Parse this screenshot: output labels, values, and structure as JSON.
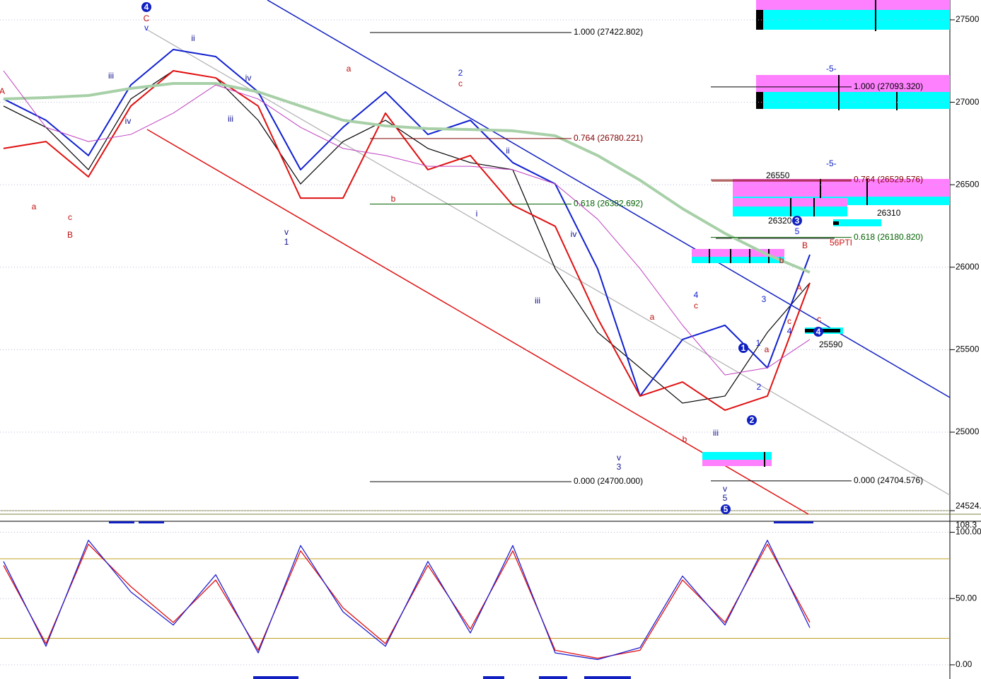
{
  "chart_data": [
    {
      "type": "line",
      "ylim": [
        24524,
        27620
      ],
      "yticks": [
        25000,
        25500,
        26000,
        26500,
        27000,
        27500,
        {
          "value": 24524,
          "label": "24524."
        }
      ],
      "series": [
        {
          "name": "close",
          "color": "#000000",
          "values": [
            26977,
            26848,
            26591,
            27020,
            27191,
            27148,
            26891,
            26505,
            26762,
            26891,
            26720,
            26634,
            26591,
            25991,
            25605,
            25390,
            25176,
            25219,
            25605,
            25905
          ]
        },
        {
          "name": "upper",
          "color": "#1020d0",
          "values": [
            27020,
            26891,
            26677,
            27105,
            27320,
            27277,
            27063,
            26591,
            26848,
            27063,
            26805,
            26891,
            26634,
            26505,
            25991,
            25219,
            25562,
            25648,
            25390,
            26076
          ]
        },
        {
          "name": "lower",
          "color": "#e01010",
          "values": [
            26720,
            26762,
            26548,
            26977,
            27191,
            27148,
            26977,
            26419,
            26419,
            26934,
            26591,
            26677,
            26376,
            26248,
            25690,
            25219,
            25304,
            25133,
            25219,
            25905
          ]
        },
        {
          "name": "slow",
          "color": "#a8d0a8",
          "values": [
            27020,
            27028,
            27041,
            27084,
            27114,
            27114,
            27063,
            26977,
            26891,
            26857,
            26840,
            26835,
            26827,
            26797,
            26677,
            26527,
            26355,
            26205,
            26076,
            25969
          ]
        },
        {
          "name": "mid",
          "color": "#c040c0",
          "values": [
            27191,
            26848,
            26762,
            26805,
            26934,
            27105,
            27020,
            26848,
            26720,
            26677,
            26612,
            26612,
            26591,
            26505,
            26291,
            25991,
            25648,
            25347,
            25390,
            25562
          ]
        }
      ],
      "fib_left": [
        {
          "value": 27422.802,
          "label": "1.000 (27422.802)"
        },
        {
          "value": 26780.221,
          "label": "0.764 (26780.221)"
        },
        {
          "value": 26382.692,
          "label": "0.618 (26382.692)"
        },
        {
          "value": 24700.0,
          "label": "0.000 (24700.000)"
        }
      ],
      "fib_right": [
        {
          "value": 27093.32,
          "label": "1.000 (27093.320)"
        },
        {
          "value": 26529.576,
          "label": "0.764 (26529.576)"
        },
        {
          "value": 26180.82,
          "label": "0.618 (26180.820)"
        },
        {
          "value": 24704.576,
          "label": "0.000 (24704.576)"
        }
      ],
      "notes": [
        "26550",
        "26320",
        "26310",
        "25590",
        "-5-",
        "-5-",
        "56PTI"
      ],
      "wave_labels": [
        "A",
        "a",
        "c",
        "B",
        "C",
        "v",
        "ii",
        "iii",
        "iv",
        "iii",
        "iv",
        "v",
        "1",
        "a",
        "b",
        "2",
        "c",
        "ii",
        "i",
        "iv",
        "iii",
        "a",
        "v",
        "3",
        "b",
        "4",
        "c",
        "iii",
        "v",
        "5",
        "5",
        "B",
        "A",
        "b",
        "3",
        "c",
        "4",
        "a",
        "1",
        "2",
        "c"
      ],
      "wave_circles": [
        "4",
        "1",
        "2",
        "3",
        "4",
        "5"
      ]
    },
    {
      "type": "line",
      "ylim": [
        -10.7,
        108.3
      ],
      "yticks": [
        {
          "value": 100,
          "label": "100.00"
        },
        {
          "value": 50,
          "label": "50.00"
        },
        {
          "value": 0,
          "label": "0.00"
        },
        {
          "value": 108.3,
          "label": "108.3"
        }
      ],
      "bands": [
        20,
        80
      ],
      "series": [
        {
          "name": "signal",
          "color": "#e01010",
          "values": [
            75,
            16,
            91,
            59,
            32,
            64,
            11,
            86,
            43,
            16,
            75,
            27,
            86,
            11,
            5,
            11,
            64,
            32,
            91,
            32
          ]
        },
        {
          "name": "osc",
          "color": "#2020d0",
          "values": [
            78,
            14,
            94,
            55,
            30,
            68,
            9,
            90,
            40,
            14,
            78,
            24,
            90,
            9,
            4,
            13,
            67,
            30,
            94,
            28
          ]
        }
      ]
    }
  ]
}
